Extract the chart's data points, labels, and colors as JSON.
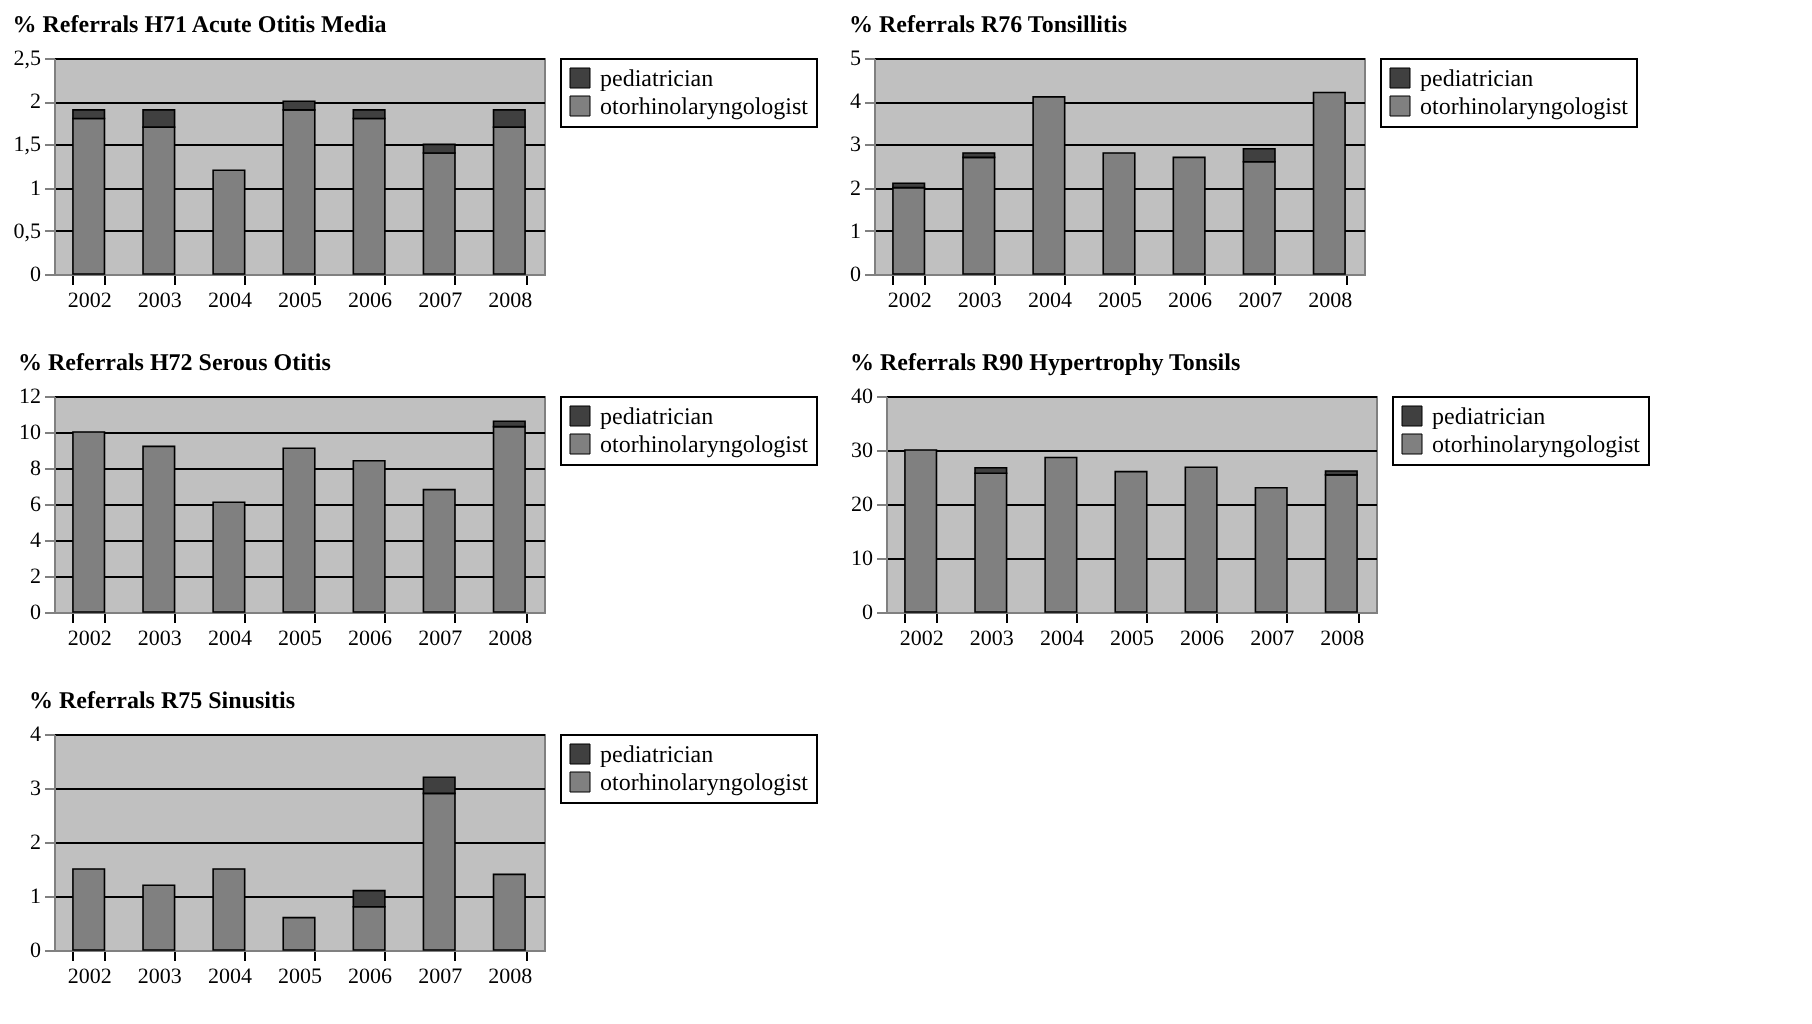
{
  "chart_data": [
    {
      "type": "bar",
      "title": "% Referrals H71 Acute Otitis Media",
      "stacked": true,
      "categories": [
        "2002",
        "2003",
        "2004",
        "2005",
        "2006",
        "2007",
        "2008"
      ],
      "ylim": [
        0,
        2.5
      ],
      "yticks": [
        0,
        {
          "value": 0.5,
          "label": "0,5"
        },
        1,
        {
          "value": 1.5,
          "label": "1,5"
        },
        2,
        {
          "value": 2.5,
          "label": "2,5"
        }
      ],
      "grid": "y",
      "legend": "right",
      "series": [
        {
          "name": "otorhinolaryngologist",
          "color": "#808080",
          "values": [
            1.8,
            1.7,
            1.2,
            1.9,
            1.8,
            1.4,
            1.7
          ]
        },
        {
          "name": "pediatrician",
          "color": "#404040",
          "values": [
            0.1,
            0.2,
            null,
            0.1,
            0.1,
            0.1,
            0.2
          ]
        }
      ]
    },
    {
      "type": "bar",
      "title": "% Referrals R76 Tonsillitis",
      "stacked": true,
      "categories": [
        "2002",
        "2003",
        "2004",
        "2005",
        "2006",
        "2007",
        "2008"
      ],
      "ylim": [
        0,
        5
      ],
      "yticks": [
        0,
        1,
        2,
        3,
        4,
        5
      ],
      "grid": "y",
      "legend": "right",
      "series": [
        {
          "name": "otorhinolaryngologist",
          "color": "#808080",
          "values": [
            2.0,
            2.7,
            4.1,
            2.8,
            2.7,
            2.6,
            4.2
          ]
        },
        {
          "name": "pediatrician",
          "color": "#404040",
          "values": [
            0.1,
            0.1,
            null,
            null,
            null,
            0.3,
            null
          ]
        }
      ]
    },
    {
      "type": "bar",
      "title": "% Referrals H72 Serous Otitis",
      "stacked": true,
      "categories": [
        "2002",
        "2003",
        "2004",
        "2005",
        "2006",
        "2007",
        "2008"
      ],
      "ylim": [
        0,
        12
      ],
      "yticks": [
        0,
        2,
        4,
        6,
        8,
        10,
        12
      ],
      "grid": "y",
      "legend": "right",
      "series": [
        {
          "name": "otorhinolaryngologist",
          "color": "#808080",
          "values": [
            10.0,
            9.2,
            6.1,
            9.1,
            8.4,
            6.8,
            10.3
          ]
        },
        {
          "name": "pediatrician",
          "color": "#404040",
          "values": [
            null,
            null,
            null,
            null,
            null,
            null,
            0.3
          ]
        }
      ]
    },
    {
      "type": "bar",
      "title": "% Referrals R90 Hypertrophy Tonsils",
      "stacked": true,
      "categories": [
        "2002",
        "2003",
        "2004",
        "2005",
        "2006",
        "2007",
        "2008"
      ],
      "ylim": [
        0,
        40
      ],
      "yticks": [
        0,
        10,
        20,
        30,
        40
      ],
      "grid": "y",
      "legend": "right",
      "series": [
        {
          "name": "otorhinolaryngologist",
          "color": "#808080",
          "values": [
            30,
            25.7,
            28.6,
            26.0,
            26.8,
            23.0,
            25.4
          ]
        },
        {
          "name": "pediatrician",
          "color": "#404040",
          "values": [
            null,
            1.0,
            null,
            null,
            null,
            null,
            0.7
          ]
        }
      ]
    },
    {
      "type": "bar",
      "title": "% Referrals R75 Sinusitis",
      "stacked": true,
      "categories": [
        "2002",
        "2003",
        "2004",
        "2005",
        "2006",
        "2007",
        "2008"
      ],
      "ylim": [
        0,
        4
      ],
      "yticks": [
        0,
        1,
        2,
        3,
        4
      ],
      "grid": "y",
      "legend": "right",
      "series": [
        {
          "name": "otorhinolaryngologist",
          "color": "#808080",
          "values": [
            1.5,
            1.2,
            1.5,
            0.6,
            0.8,
            2.9,
            1.4
          ]
        },
        {
          "name": "pediatrician",
          "color": "#404040",
          "values": [
            null,
            null,
            null,
            null,
            0.3,
            0.3,
            null
          ]
        }
      ]
    }
  ]
}
